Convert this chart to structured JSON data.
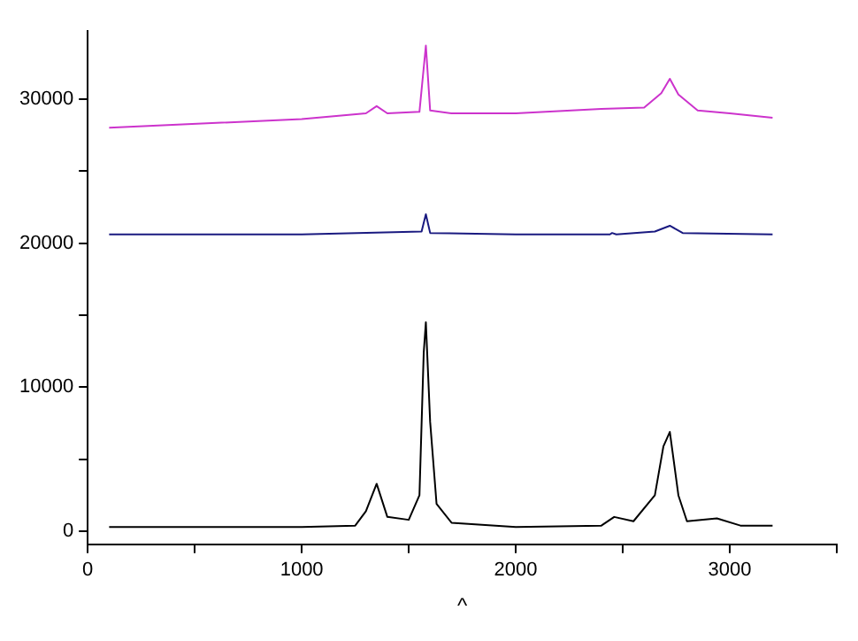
{
  "chart_data": {
    "type": "line",
    "xlabel": "^",
    "xlim": [
      0,
      3500
    ],
    "xticks": [
      0,
      {
        "value": 500,
        "label": null
      },
      1000,
      {
        "value": 1500,
        "label": null
      },
      2000,
      {
        "value": 2500,
        "label": null
      },
      3000,
      {
        "value": 3500,
        "label": null
      }
    ],
    "ylim": [
      -900,
      34700
    ],
    "yticks": [
      0,
      {
        "value": 5000,
        "label": null
      },
      10000,
      {
        "value": 15000,
        "label": null
      },
      20000,
      {
        "value": 25000,
        "label": null
      },
      30000
    ],
    "grid": false,
    "legend": false,
    "marker": "none",
    "line_style": "solid",
    "series": [
      {
        "color": "#cc33cc",
        "x": [
          100,
          1000,
          1300,
          1350,
          1400,
          1550,
          1580,
          1600,
          1700,
          2000,
          2400,
          2600,
          2680,
          2720,
          2760,
          2850,
          3000,
          3200
        ],
        "values": [
          28000,
          28600,
          29000,
          29500,
          29000,
          29100,
          33700,
          29200,
          29000,
          29000,
          29300,
          29400,
          30400,
          31400,
          30300,
          29200,
          29000,
          28700
        ]
      },
      {
        "color": "#1a1a80",
        "x": [
          100,
          1000,
          1560,
          1580,
          1600,
          2000,
          2440,
          2450,
          2470,
          2650,
          2720,
          2780,
          3200
        ],
        "values": [
          20600,
          20600,
          20800,
          22000,
          20700,
          20600,
          20600,
          20700,
          20600,
          20800,
          21200,
          20700,
          20600
        ]
      },
      {
        "color": "#000000",
        "x": [
          100,
          1000,
          1250,
          1300,
          1350,
          1400,
          1500,
          1550,
          1570,
          1580,
          1600,
          1630,
          1700,
          2000,
          2400,
          2460,
          2550,
          2650,
          2690,
          2720,
          2760,
          2800,
          2940,
          3050,
          3200
        ],
        "values": [
          300,
          300,
          400,
          1400,
          3300,
          1000,
          800,
          2500,
          12400,
          14500,
          7600,
          1900,
          600,
          300,
          400,
          1000,
          700,
          2500,
          5900,
          6900,
          2500,
          700,
          900,
          400,
          400
        ]
      }
    ]
  }
}
